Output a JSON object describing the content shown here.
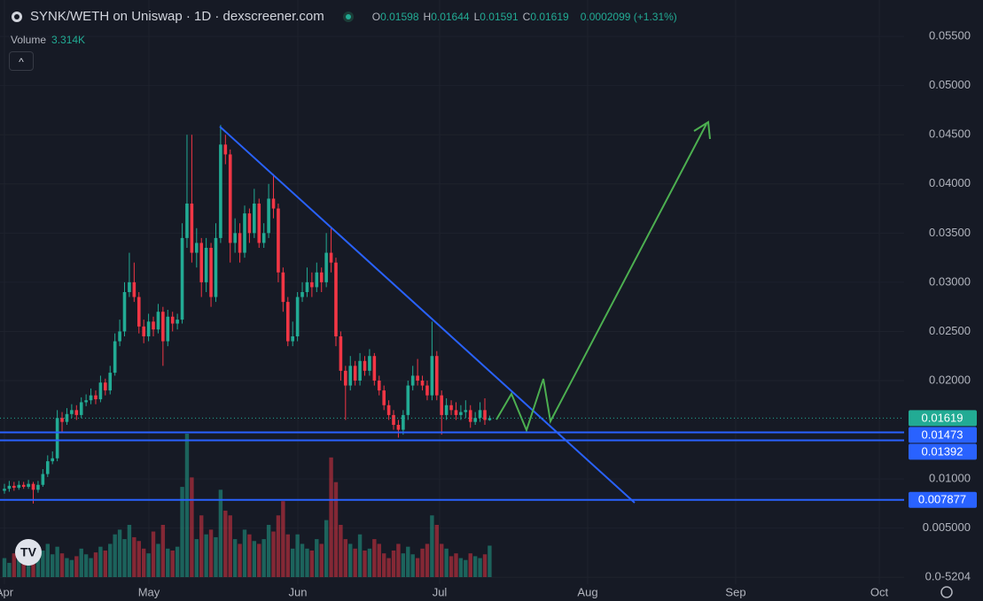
{
  "header": {
    "title": "SYNK/WETH on Uniswap · 1D · dexscreener.com",
    "ohlc": [
      {
        "key": "O",
        "value": "0.01598"
      },
      {
        "key": "H",
        "value": "0.01644"
      },
      {
        "key": "L",
        "value": "0.01591"
      },
      {
        "key": "C",
        "value": "0.01619"
      }
    ],
    "change": "0.0002099 (+1.31%)",
    "volume_label": "Volume",
    "volume_value": "3.314K"
  },
  "chart_data": {
    "type": "candlestick",
    "x_labels": [
      "Apr",
      "May",
      "Jun",
      "Jul",
      "Aug",
      "Sep",
      "Oct"
    ],
    "open": [
      0.0088,
      0.009,
      0.0093,
      0.0091,
      0.0094,
      0.0092,
      0.0095,
      0.0089,
      0.0094,
      0.0105,
      0.0118,
      0.0121,
      0.0162,
      0.0158,
      0.0166,
      0.017,
      0.0165,
      0.0178,
      0.018,
      0.0185,
      0.0181,
      0.0198,
      0.019,
      0.0208,
      0.024,
      0.025,
      0.029,
      0.03,
      0.0285,
      0.0255,
      0.0245,
      0.026,
      0.0252,
      0.027,
      0.024,
      0.0265,
      0.0258,
      0.0262,
      0.0345,
      0.038,
      0.033,
      0.034,
      0.03,
      0.0335,
      0.0285,
      0.0345,
      0.044,
      0.043,
      0.034,
      0.035,
      0.033,
      0.037,
      0.035,
      0.038,
      0.034,
      0.035,
      0.0385,
      0.0375,
      0.031,
      0.028,
      0.024,
      0.0245,
      0.0285,
      0.029,
      0.03,
      0.0295,
      0.031,
      0.03,
      0.033,
      0.032,
      0.0245,
      0.021,
      0.0195,
      0.0215,
      0.02,
      0.022,
      0.021,
      0.0225,
      0.02,
      0.019,
      0.0175,
      0.0165,
      0.0155,
      0.015,
      0.0165,
      0.0195,
      0.0205,
      0.02,
      0.0195,
      0.0185,
      0.0225,
      0.0185,
      0.0165,
      0.0175,
      0.017,
      0.0165,
      0.0168,
      0.017,
      0.0158,
      0.0162,
      0.017,
      0.01598
    ],
    "high": [
      0.0095,
      0.0098,
      0.0097,
      0.0098,
      0.0097,
      0.0099,
      0.0097,
      0.0098,
      0.011,
      0.0124,
      0.0128,
      0.017,
      0.0168,
      0.0172,
      0.0176,
      0.0175,
      0.0183,
      0.0186,
      0.0192,
      0.019,
      0.0205,
      0.0202,
      0.0215,
      0.0248,
      0.0262,
      0.03,
      0.033,
      0.032,
      0.029,
      0.0262,
      0.0268,
      0.0265,
      0.0278,
      0.0275,
      0.0272,
      0.027,
      0.0268,
      0.036,
      0.045,
      0.045,
      0.0355,
      0.0345,
      0.0345,
      0.034,
      0.036,
      0.046,
      0.045,
      0.0435,
      0.0365,
      0.036,
      0.0378,
      0.0375,
      0.0395,
      0.0385,
      0.036,
      0.04,
      0.041,
      0.038,
      0.0315,
      0.0285,
      0.026,
      0.029,
      0.03,
      0.0315,
      0.031,
      0.032,
      0.0315,
      0.035,
      0.0355,
      0.0325,
      0.025,
      0.0215,
      0.0225,
      0.022,
      0.0228,
      0.0225,
      0.0232,
      0.0228,
      0.0205,
      0.0195,
      0.018,
      0.017,
      0.016,
      0.017,
      0.02,
      0.0215,
      0.0222,
      0.0205,
      0.02,
      0.026,
      0.023,
      0.019,
      0.0182,
      0.018,
      0.0178,
      0.0175,
      0.018,
      0.0175,
      0.0168,
      0.0178,
      0.0182,
      0.01644
    ],
    "low": [
      0.0085,
      0.0087,
      0.0088,
      0.0089,
      0.009,
      0.009,
      0.0075,
      0.0086,
      0.0092,
      0.0102,
      0.0115,
      0.0118,
      0.0148,
      0.0155,
      0.0162,
      0.016,
      0.0162,
      0.0174,
      0.0176,
      0.0176,
      0.0178,
      0.0185,
      0.0186,
      0.0205,
      0.0235,
      0.0245,
      0.0285,
      0.028,
      0.0248,
      0.0238,
      0.024,
      0.0245,
      0.0248,
      0.0215,
      0.0235,
      0.025,
      0.0252,
      0.0258,
      0.0335,
      0.032,
      0.0315,
      0.0285,
      0.029,
      0.0275,
      0.028,
      0.034,
      0.042,
      0.032,
      0.033,
      0.032,
      0.0325,
      0.034,
      0.0345,
      0.0335,
      0.0335,
      0.0345,
      0.0365,
      0.03,
      0.027,
      0.0235,
      0.0235,
      0.024,
      0.028,
      0.0285,
      0.0285,
      0.029,
      0.029,
      0.0295,
      0.031,
      0.0235,
      0.02,
      0.016,
      0.019,
      0.0195,
      0.0195,
      0.0205,
      0.0205,
      0.0195,
      0.0185,
      0.017,
      0.016,
      0.015,
      0.0142,
      0.0145,
      0.016,
      0.019,
      0.0195,
      0.019,
      0.018,
      0.018,
      0.018,
      0.0145,
      0.016,
      0.0165,
      0.016,
      0.016,
      0.0162,
      0.0152,
      0.0155,
      0.0158,
      0.0155,
      0.01591
    ],
    "close": [
      0.009,
      0.0093,
      0.0091,
      0.0094,
      0.0092,
      0.0095,
      0.0089,
      0.0094,
      0.0105,
      0.0118,
      0.0121,
      0.0162,
      0.0158,
      0.0166,
      0.017,
      0.0165,
      0.0178,
      0.018,
      0.0185,
      0.0181,
      0.0198,
      0.019,
      0.0208,
      0.024,
      0.025,
      0.029,
      0.03,
      0.0285,
      0.0255,
      0.0245,
      0.026,
      0.0252,
      0.027,
      0.024,
      0.0265,
      0.0258,
      0.0262,
      0.0345,
      0.038,
      0.033,
      0.034,
      0.03,
      0.0335,
      0.0285,
      0.0345,
      0.044,
      0.043,
      0.034,
      0.035,
      0.033,
      0.037,
      0.035,
      0.038,
      0.034,
      0.035,
      0.0385,
      0.0375,
      0.031,
      0.028,
      0.024,
      0.0245,
      0.0285,
      0.029,
      0.03,
      0.0295,
      0.031,
      0.03,
      0.033,
      0.032,
      0.0245,
      0.021,
      0.0195,
      0.0215,
      0.02,
      0.022,
      0.021,
      0.0225,
      0.02,
      0.019,
      0.0175,
      0.0165,
      0.0155,
      0.015,
      0.0165,
      0.0195,
      0.0205,
      0.02,
      0.0195,
      0.0185,
      0.0225,
      0.0185,
      0.0165,
      0.0175,
      0.017,
      0.0165,
      0.0168,
      0.017,
      0.0158,
      0.0162,
      0.017,
      0.016,
      0.01619
    ],
    "volume": [
      2.0,
      1.5,
      2.5,
      1.8,
      2.2,
      1.6,
      3.0,
      2.0,
      2.8,
      3.5,
      2.4,
      3.2,
      2.5,
      2.0,
      1.8,
      2.2,
      3.0,
      2.4,
      2.0,
      2.6,
      3.2,
      2.8,
      3.5,
      4.5,
      5.0,
      4.0,
      5.5,
      4.2,
      3.8,
      3.0,
      2.5,
      4.8,
      3.5,
      5.5,
      3.0,
      2.8,
      3.2,
      9.5,
      15.1,
      10.5,
      4.0,
      6.5,
      4.5,
      5.0,
      4.2,
      9.2,
      7.0,
      6.5,
      4.0,
      3.5,
      5.0,
      4.5,
      3.8,
      3.5,
      4.0,
      5.5,
      4.8,
      6.5,
      8.0,
      4.5,
      3.0,
      4.5,
      3.5,
      3.0,
      2.8,
      4.0,
      3.5,
      6.0,
      12.6,
      10.0,
      5.5,
      4.0,
      3.5,
      3.0,
      4.5,
      2.8,
      3.0,
      4.0,
      3.5,
      2.5,
      2.0,
      2.8,
      3.5,
      2.5,
      3.2,
      2.4,
      2.0,
      3.0,
      3.5,
      6.5,
      5.5,
      3.5,
      3.0,
      2.2,
      2.5,
      2.0,
      1.8,
      2.5,
      2.2,
      2.0,
      2.4,
      3.314
    ],
    "up_color": "#22ab94",
    "down_color": "#f23645",
    "level_color": "#2962ff",
    "ylim": [
      -0.0007,
      0.0587
    ],
    "yticks": [
      {
        "value": 0,
        "label": "0.0-5204"
      },
      {
        "value": 0.005,
        "label": "0.005000"
      },
      {
        "value": 0.01,
        "label": "0.01000"
      },
      {
        "value": 0.02,
        "label": "0.02000"
      },
      {
        "value": 0.025,
        "label": "0.02500"
      },
      {
        "value": 0.03,
        "label": "0.03000"
      },
      {
        "value": 0.035,
        "label": "0.03500"
      },
      {
        "value": 0.04,
        "label": "0.04000"
      },
      {
        "value": 0.045,
        "label": "0.04500"
      },
      {
        "value": 0.05,
        "label": "0.05000"
      },
      {
        "value": 0.055,
        "label": "0.05500"
      }
    ],
    "last_price": 0.01619,
    "levels": [
      0.01473,
      0.01392,
      0.007877
    ]
  }
}
